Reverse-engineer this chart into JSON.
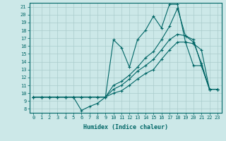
{
  "xlabel": "Humidex (Indice chaleur)",
  "background_color": "#cce8e8",
  "line_color": "#006666",
  "grid_color": "#aacccc",
  "xlim": [
    -0.5,
    23.5
  ],
  "ylim": [
    7.5,
    21.5
  ],
  "yticks": [
    8,
    9,
    10,
    11,
    12,
    13,
    14,
    15,
    16,
    17,
    18,
    19,
    20,
    21
  ],
  "xticks": [
    0,
    1,
    2,
    3,
    4,
    5,
    6,
    7,
    8,
    9,
    10,
    11,
    12,
    13,
    14,
    15,
    16,
    17,
    18,
    19,
    20,
    21,
    22,
    23
  ],
  "curve1_x": [
    0,
    1,
    2,
    3,
    4,
    5,
    6,
    7,
    8,
    9,
    10,
    11,
    12,
    13,
    14,
    15,
    16,
    17,
    18,
    19,
    20,
    21,
    22,
    23
  ],
  "curve1_y": [
    9.5,
    9.5,
    9.5,
    9.5,
    9.5,
    9.5,
    7.8,
    8.3,
    8.7,
    9.5,
    16.8,
    15.8,
    13.3,
    16.8,
    18.0,
    19.8,
    18.3,
    21.3,
    21.3,
    16.5,
    13.5,
    13.5,
    10.5,
    10.5
  ],
  "curve2_x": [
    0,
    1,
    2,
    3,
    4,
    5,
    6,
    7,
    8,
    9,
    10,
    11,
    12,
    13,
    14,
    15,
    16,
    17,
    18,
    19,
    20,
    21,
    22,
    23
  ],
  "curve2_y": [
    9.5,
    9.5,
    9.5,
    9.5,
    9.5,
    9.5,
    9.5,
    9.5,
    9.5,
    9.5,
    10.0,
    10.3,
    11.0,
    11.8,
    12.5,
    13.0,
    14.3,
    15.5,
    16.5,
    16.5,
    16.3,
    15.5,
    10.5,
    10.5
  ],
  "curve3_x": [
    0,
    1,
    2,
    3,
    4,
    5,
    6,
    7,
    8,
    9,
    10,
    11,
    12,
    13,
    14,
    15,
    16,
    17,
    18,
    19,
    20,
    21,
    22,
    23
  ],
  "curve3_y": [
    9.5,
    9.5,
    9.5,
    9.5,
    9.5,
    9.5,
    9.5,
    9.5,
    9.5,
    9.5,
    10.5,
    11.0,
    11.8,
    12.8,
    13.5,
    14.3,
    15.5,
    16.8,
    17.5,
    17.3,
    16.5,
    13.8,
    10.5,
    10.5
  ],
  "curve4_x": [
    0,
    1,
    2,
    3,
    4,
    5,
    6,
    7,
    8,
    9,
    10,
    11,
    12,
    13,
    14,
    15,
    16,
    17,
    18,
    19,
    20,
    21,
    22,
    23
  ],
  "curve4_y": [
    9.5,
    9.5,
    9.5,
    9.5,
    9.5,
    9.5,
    9.5,
    9.5,
    9.5,
    9.5,
    11.0,
    11.5,
    12.3,
    13.3,
    14.5,
    15.3,
    16.8,
    18.5,
    20.8,
    17.3,
    16.8,
    13.5,
    10.5,
    10.5
  ]
}
